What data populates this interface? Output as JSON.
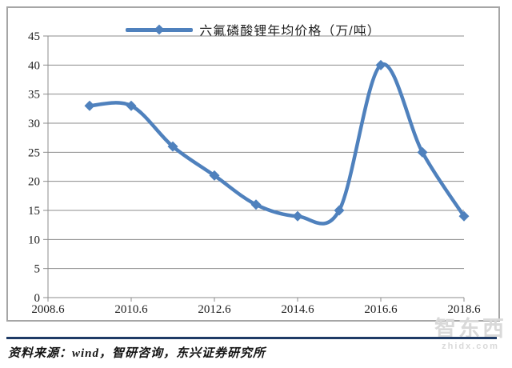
{
  "chart_data": {
    "type": "line",
    "title": "六氟磷酸锂年均价格（万/吨）",
    "series_name": "六氟磷酸锂年均价格（万/吨）",
    "x": [
      2009.6,
      2010.6,
      2011.6,
      2012.6,
      2013.6,
      2014.6,
      2015.6,
      2016.6,
      2017.6,
      2018.6
    ],
    "values": [
      33,
      33,
      26,
      21,
      16,
      14,
      15,
      40,
      25,
      14
    ],
    "xticks": [
      "2008.6",
      "2010.6",
      "2012.6",
      "2014.6",
      "2016.6",
      "2018.6"
    ],
    "yticks": [
      0,
      5,
      10,
      15,
      20,
      25,
      30,
      35,
      40,
      45
    ],
    "xlim": [
      2008.6,
      2018.6
    ],
    "ylim": [
      0,
      45
    ],
    "xlabel": "",
    "ylabel": "",
    "grid": true,
    "legend_position": "top",
    "smooth": true,
    "marker": "diamond"
  },
  "footer": {
    "source_text": "资料来源：wind，智研咨询，东兴证券研究所"
  },
  "watermark": {
    "logo_text": "智东西",
    "url_text": "zhidx.com"
  },
  "colors": {
    "line": "#4f81bd",
    "grid": "#8c8c8c",
    "axis": "#8c8c8c",
    "frame_border": "#a6a6a6",
    "separator": "#1f3b66",
    "watermark": "#d9d9d9",
    "text": "#1f1f1f"
  }
}
